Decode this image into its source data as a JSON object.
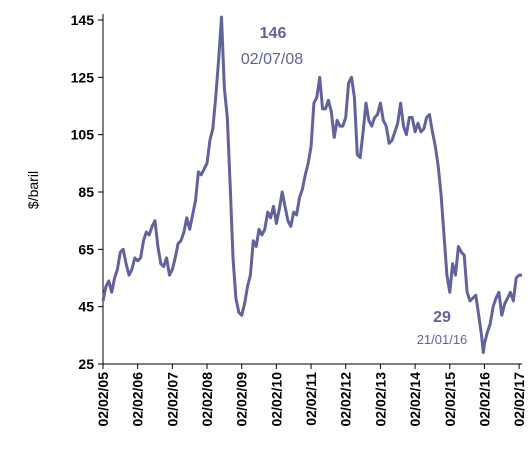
{
  "chart_data": {
    "type": "line",
    "y_label": "$/baril",
    "color": "#62629c",
    "x": [
      "02/02/05",
      "02/03/05",
      "02/04/05",
      "02/05/05",
      "02/06/05",
      "02/07/05",
      "02/08/05",
      "02/09/05",
      "02/10/05",
      "02/11/05",
      "02/12/05",
      "02/01/06",
      "02/02/06",
      "02/03/06",
      "02/04/06",
      "02/05/06",
      "02/06/06",
      "02/07/06",
      "02/08/06",
      "02/09/06",
      "02/10/06",
      "02/11/06",
      "02/12/06",
      "02/01/07",
      "02/02/07",
      "02/03/07",
      "02/04/07",
      "02/05/07",
      "02/06/07",
      "02/07/07",
      "02/08/07",
      "02/09/07",
      "02/10/07",
      "02/11/07",
      "02/12/07",
      "02/01/08",
      "02/02/08",
      "02/03/08",
      "02/04/08",
      "02/05/08",
      "02/06/08",
      "02/07/08",
      "02/08/08",
      "02/09/08",
      "02/10/08",
      "02/11/08",
      "02/12/08",
      "02/01/09",
      "02/02/09",
      "02/03/09",
      "02/04/09",
      "02/05/09",
      "02/06/09",
      "02/07/09",
      "02/08/09",
      "02/09/09",
      "02/10/09",
      "02/11/09",
      "02/12/09",
      "02/01/10",
      "02/02/10",
      "02/03/10",
      "02/04/10",
      "02/05/10",
      "02/06/10",
      "02/07/10",
      "02/08/10",
      "02/09/10",
      "02/10/10",
      "02/11/10",
      "02/12/10",
      "02/01/11",
      "02/02/11",
      "02/03/11",
      "02/04/11",
      "02/05/11",
      "02/06/11",
      "02/07/11",
      "02/08/11",
      "02/09/11",
      "02/10/11",
      "02/11/11",
      "02/12/11",
      "02/01/12",
      "02/02/12",
      "02/03/12",
      "02/04/12",
      "02/05/12",
      "02/06/12",
      "02/07/12",
      "02/08/12",
      "02/09/12",
      "02/10/12",
      "02/11/12",
      "02/12/12",
      "02/01/13",
      "02/02/13",
      "02/03/13",
      "02/04/13",
      "02/05/13",
      "02/06/13",
      "02/07/13",
      "02/08/13",
      "02/09/13",
      "02/10/13",
      "02/11/13",
      "02/12/13",
      "02/01/14",
      "02/02/14",
      "02/03/14",
      "02/04/14",
      "02/05/14",
      "02/06/14",
      "02/07/14",
      "02/08/14",
      "02/09/14",
      "02/10/14",
      "02/11/14",
      "02/12/14",
      "02/01/15",
      "02/02/15",
      "02/03/15",
      "02/04/15",
      "02/05/15",
      "02/06/15",
      "02/07/15",
      "02/08/15",
      "02/09/15",
      "02/10/15",
      "02/11/15",
      "02/12/15",
      "02/01/16",
      "21/01/16",
      "02/02/16",
      "02/03/16",
      "02/04/16",
      "02/05/16",
      "02/06/16",
      "02/07/16",
      "02/08/16",
      "02/09/16",
      "02/10/16",
      "02/11/16",
      "02/12/16",
      "02/01/17",
      "02/02/17",
      "02/03/17"
    ],
    "values": [
      47,
      52,
      54,
      50,
      55,
      58,
      64,
      65,
      60,
      56,
      58,
      62,
      61,
      62,
      68,
      71,
      70,
      73,
      75,
      66,
      60,
      59,
      62,
      56,
      58,
      62,
      67,
      68,
      71,
      76,
      72,
      77,
      82,
      92,
      91,
      93,
      95,
      103,
      107,
      118,
      131,
      146,
      121,
      111,
      88,
      62,
      48,
      43,
      42,
      46,
      52,
      56,
      68,
      66,
      72,
      70,
      72,
      78,
      76,
      80,
      74,
      79,
      85,
      80,
      75,
      73,
      78,
      77,
      83,
      86,
      91,
      95,
      101,
      116,
      118,
      125,
      114,
      114,
      117,
      113,
      104,
      110,
      108,
      108,
      111,
      123,
      125,
      118,
      98,
      97,
      106,
      116,
      110,
      108,
      111,
      112,
      116,
      110,
      108,
      102,
      103,
      106,
      109,
      116,
      108,
      105,
      111,
      111,
      106,
      109,
      106,
      107,
      111,
      112,
      106,
      101,
      94,
      84,
      70,
      56,
      50,
      60,
      56,
      66,
      64,
      63,
      50,
      47,
      48,
      49,
      42,
      35,
      29,
      32,
      36,
      39,
      45,
      48,
      50,
      42,
      46,
      48,
      50,
      47,
      55,
      56,
      56
    ],
    "xlim": [
      "02/02/05",
      "02/03/17"
    ],
    "xticks": [
      "02/02/05",
      "02/02/06",
      "02/02/07",
      "02/02/08",
      "02/02/09",
      "02/02/10",
      "02/02/11",
      "02/02/12",
      "02/02/13",
      "02/02/14",
      "02/02/15",
      "02/02/16",
      "02/02/17"
    ],
    "ylim": [
      25,
      145
    ],
    "yticks": [
      25,
      45,
      65,
      85,
      105,
      125,
      145
    ],
    "annotations": [
      {
        "value": 146,
        "date": "02/07/08"
      },
      {
        "value": 29,
        "date": "21/01/16"
      }
    ]
  }
}
